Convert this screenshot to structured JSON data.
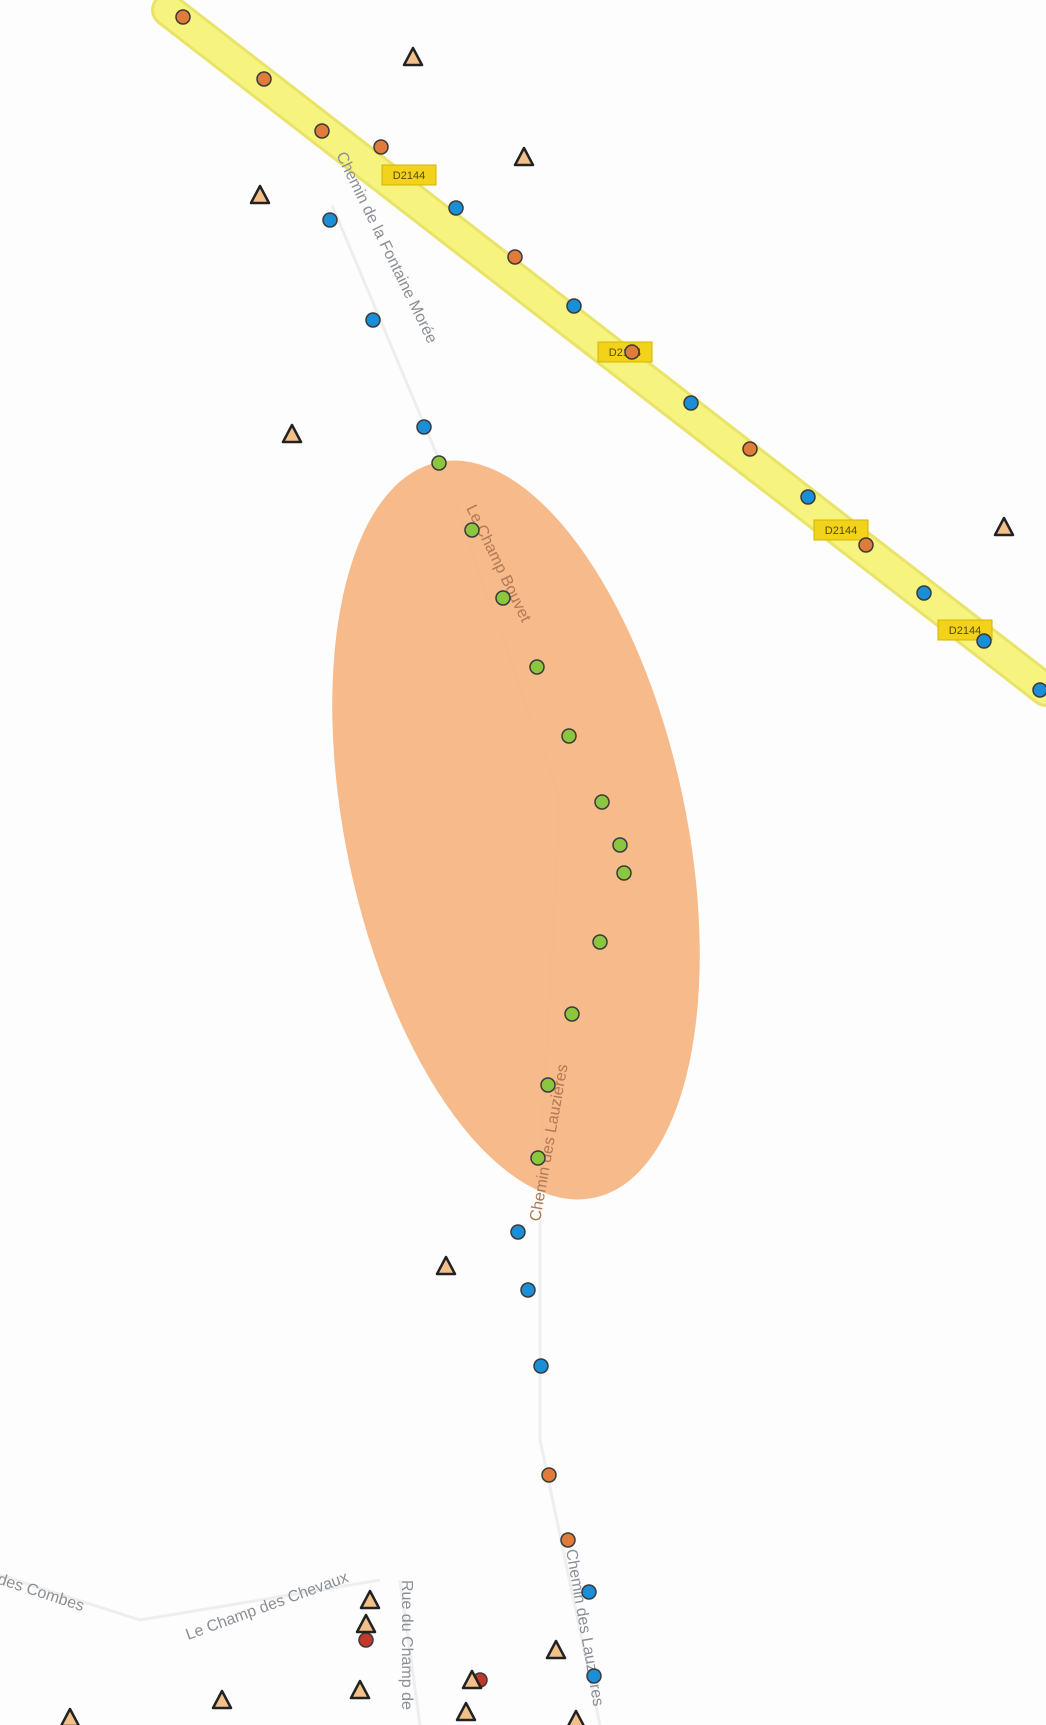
{
  "road_shield": "D2144",
  "labels": {
    "fontaine": "Chemin de la Fontaine Morée",
    "champ_bouvet": "Le Champ Bouvet",
    "chemin_lauzieres": "Chemin des Lauzières",
    "chemin_lauzieres_south": "Chemin des Lauzières",
    "combes": "Chemin des Combes",
    "champ_chevaux": "Le Champ des Chevaux",
    "rue_champ": "Rue du Champ de"
  },
  "colors": {
    "highway_fill": "#f7f37f",
    "highway_edge": "#e9e36a",
    "badge": "#f2d21b",
    "zone": "#f6b27d",
    "point_orange": "#e07b3a",
    "point_blue": "#1a8fd8",
    "point_green": "#8cc63f",
    "point_red": "#c0392b",
    "warning_fill": "#f4c08a",
    "warning_stroke": "#222222"
  },
  "icons": {
    "warning": "warning-triangle-icon",
    "point": "point-marker-icon"
  }
}
